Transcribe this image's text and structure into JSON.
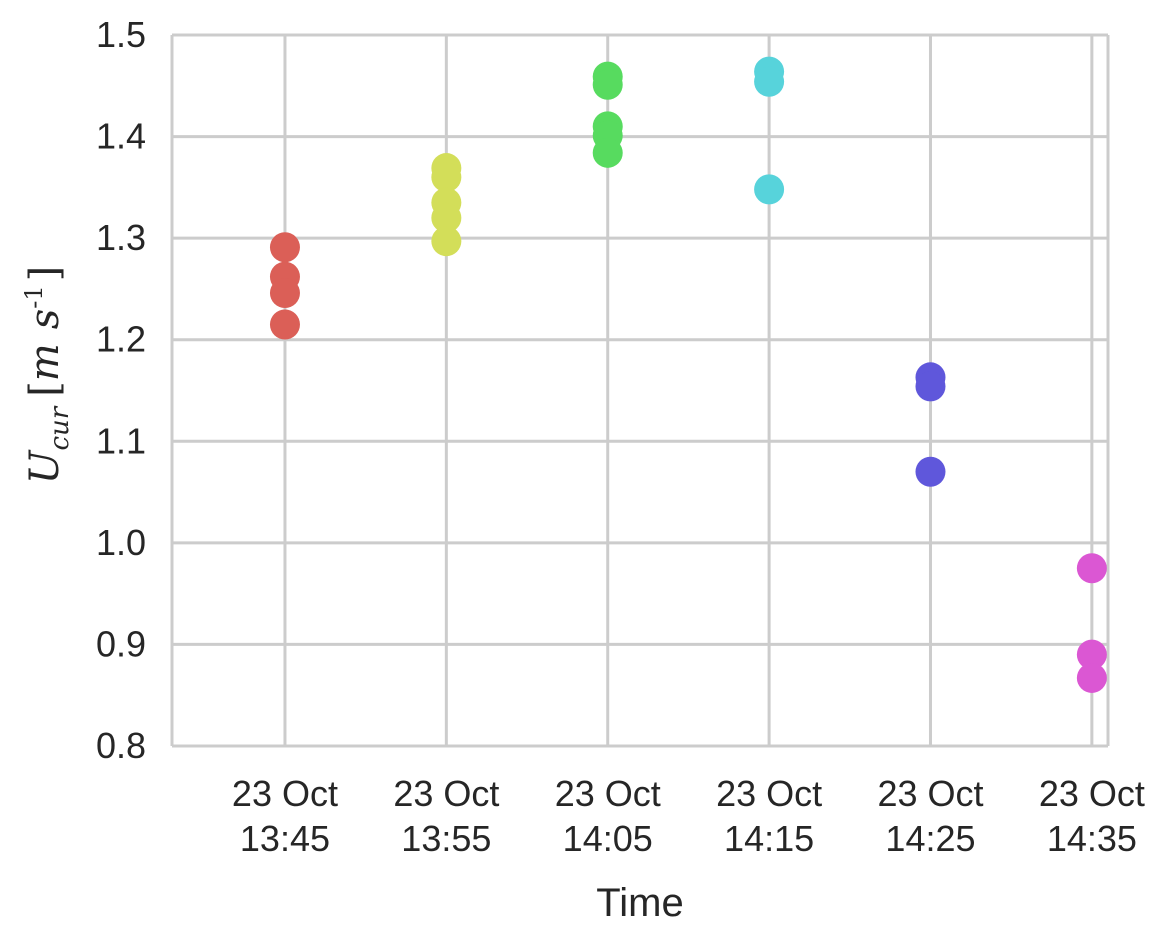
{
  "chart_data": {
    "type": "scatter",
    "xlabel": "Time",
    "ylabel": {
      "symbol": "U",
      "subscript": "cur",
      "units_open": "[",
      "units_m": "m",
      "units_s": "s",
      "units_exp": "-1",
      "units_close": "]"
    },
    "ylim": [
      0.8,
      1.5
    ],
    "yticks": [
      "0.8",
      "0.9",
      "1.0",
      "1.1",
      "1.2",
      "1.3",
      "1.4",
      "1.5"
    ],
    "xlim": [
      "23 Oct 13:38",
      "23 Oct 14:36"
    ],
    "xticks": [
      {
        "date": "23 Oct",
        "time": "13:45"
      },
      {
        "date": "23 Oct",
        "time": "13:55"
      },
      {
        "date": "23 Oct",
        "time": "14:05"
      },
      {
        "date": "23 Oct",
        "time": "14:15"
      },
      {
        "date": "23 Oct",
        "time": "14:25"
      },
      {
        "date": "23 Oct",
        "time": "14:35"
      }
    ],
    "grid": true,
    "series": [
      {
        "x": "23 Oct 13:45",
        "color": "#db5f57",
        "values": [
          1.291,
          1.262,
          1.246,
          1.215
        ]
      },
      {
        "x": "23 Oct 13:55",
        "color": "#d3de59",
        "values": [
          1.369,
          1.36,
          1.335,
          1.32,
          1.297
        ]
      },
      {
        "x": "23 Oct 14:05",
        "color": "#57db5f",
        "values": [
          1.459,
          1.451,
          1.41,
          1.401,
          1.384
        ]
      },
      {
        "x": "23 Oct 14:15",
        "color": "#57d3db",
        "values": [
          1.464,
          1.454,
          1.348
        ]
      },
      {
        "x": "23 Oct 14:25",
        "color": "#5f57db",
        "values": [
          1.163,
          1.154,
          1.07
        ]
      },
      {
        "x": "23 Oct 14:35",
        "color": "#db57d3",
        "values": [
          0.975,
          0.89,
          0.867
        ]
      }
    ]
  }
}
